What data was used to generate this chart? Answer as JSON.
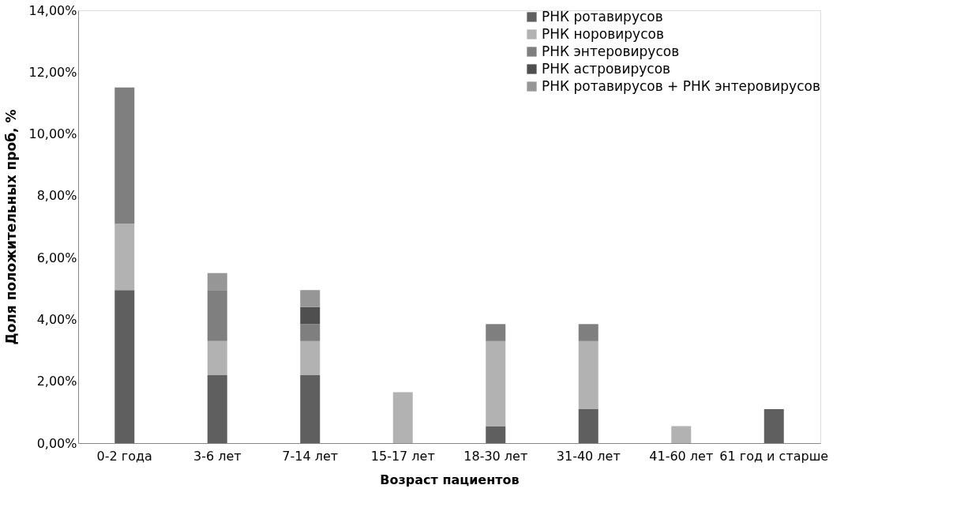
{
  "chart_data": {
    "type": "bar",
    "stacked": true,
    "xlabel": "Возраст пациентов",
    "ylabel": "Доля положительных проб, %",
    "categories": [
      "0-2 года",
      "3-6 лет",
      "7-14 лет",
      "15-17 лет",
      "18-30 лет",
      "31-40 лет",
      "41-60 лет",
      "61 год и старше"
    ],
    "series": [
      {
        "name": "РНК ротавирусов",
        "color": "#5f5f5f",
        "values": [
          4.95,
          2.2,
          2.2,
          0,
          0.55,
          1.1,
          0,
          1.1
        ]
      },
      {
        "name": "РНК норовирусов",
        "color": "#b2b2b2",
        "values": [
          2.15,
          1.1,
          1.1,
          1.65,
          2.75,
          2.2,
          0.55,
          0
        ]
      },
      {
        "name": "РНК энтеровирусов",
        "color": "#7f7f7f",
        "values": [
          4.4,
          1.65,
          0.55,
          0,
          0.55,
          0.55,
          0,
          0
        ]
      },
      {
        "name": "РНК астровирусов",
        "color": "#4f4f4f",
        "values": [
          0,
          0,
          0.55,
          0,
          0,
          0,
          0,
          0
        ]
      },
      {
        "name": "РНК ротавирусов + РНК энтеровирусов",
        "color": "#969696",
        "values": [
          0,
          0.55,
          0.55,
          0,
          0,
          0,
          0,
          0
        ]
      }
    ],
    "ylim": [
      0,
      14
    ],
    "yticks": [
      {
        "value": 0,
        "label": "0,00%"
      },
      {
        "value": 2,
        "label": "2,00%"
      },
      {
        "value": 4,
        "label": "4,00%"
      },
      {
        "value": 6,
        "label": "6,00%"
      },
      {
        "value": 8,
        "label": "8,00%"
      },
      {
        "value": 10,
        "label": "10,00%"
      },
      {
        "value": 12,
        "label": "12,00%"
      },
      {
        "value": 14,
        "label": "14,00%"
      }
    ],
    "grid": false,
    "legend": "top right"
  }
}
